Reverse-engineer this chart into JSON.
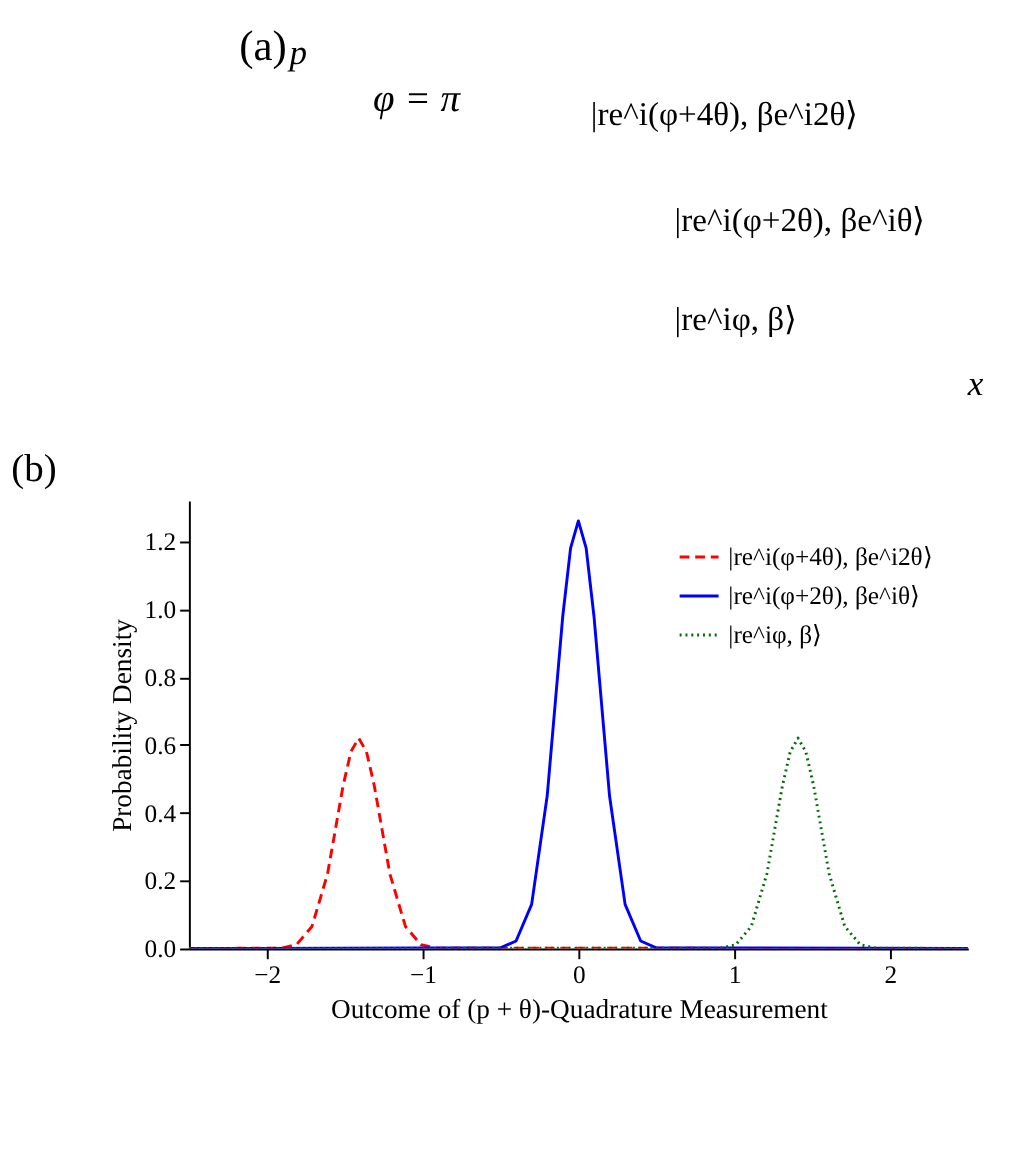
{
  "chart_data": [
    {
      "type": "other",
      "annotations": [
        "(a)",
        "φ = π",
        "p",
        "x",
        "|re^i(φ+4θ), βe^i2θ⟩",
        "|re^i(φ+2θ), βe^iθ⟩",
        "|re^iφ, β⟩"
      ]
    },
    {
      "type": "line",
      "annotations": [
        "(b)"
      ],
      "xlabel": "Outcome of  (p + θ)-Quadrature Measurement",
      "ylabel": "Probability Density",
      "xlim": [
        -2.5,
        2.5
      ],
      "xticks": [
        -2,
        -1,
        0,
        1,
        2
      ],
      "ylim": [
        0,
        1.32
      ],
      "yticks": [
        {
          "value": 0,
          "label": "0.0"
        },
        {
          "value": 0.2,
          "label": "0.2"
        },
        {
          "value": 0.4,
          "label": "0.4"
        },
        {
          "value": 0.6,
          "label": "0.6"
        },
        {
          "value": 0.8,
          "label": "0.8"
        },
        {
          "value": 1.0,
          "label": "1.0"
        },
        {
          "value": 1.2,
          "label": "1.2"
        }
      ],
      "grid": false,
      "legend": "top right",
      "marker": "none",
      "series": [
        {
          "name": "|re^i(φ+4θ), βe^i2θ⟩",
          "color": "#ff0000",
          "line_style": "dashed",
          "x": [
            -2.5,
            -1.91,
            -1.81,
            -1.71,
            -1.61,
            -1.51,
            -1.46,
            -1.41,
            -1.36,
            -1.31,
            -1.21,
            -1.11,
            -1.01,
            -0.91,
            2.5
          ],
          "values": [
            0,
            0.001,
            0.011,
            0.065,
            0.22,
            0.48,
            0.58,
            0.62,
            0.58,
            0.48,
            0.22,
            0.065,
            0.011,
            0.001,
            0
          ]
        },
        {
          "name": "|re^i(φ+2θ), βe^iθ⟩",
          "color": "#0000ff",
          "line_style": "solid",
          "x": [
            -2.5,
            -0.5,
            -0.4,
            -0.3,
            -0.2,
            -0.1,
            -0.05,
            0,
            0.05,
            0.1,
            0.2,
            0.3,
            0.4,
            0.5,
            2.5
          ],
          "values": [
            0,
            0.002,
            0.022,
            0.13,
            0.45,
            0.98,
            1.18,
            1.26,
            1.18,
            0.98,
            0.45,
            0.13,
            0.022,
            0.002,
            0
          ]
        },
        {
          "name": "|re^iφ, β⟩",
          "color": "#006b00",
          "line_style": "dotted",
          "x": [
            -2.5,
            0.91,
            1.01,
            1.11,
            1.21,
            1.31,
            1.36,
            1.41,
            1.46,
            1.51,
            1.61,
            1.71,
            1.81,
            1.91,
            2.5
          ],
          "values": [
            0,
            0.001,
            0.011,
            0.065,
            0.22,
            0.48,
            0.58,
            0.62,
            0.58,
            0.48,
            0.22,
            0.065,
            0.011,
            0.001,
            0
          ]
        }
      ]
    }
  ]
}
